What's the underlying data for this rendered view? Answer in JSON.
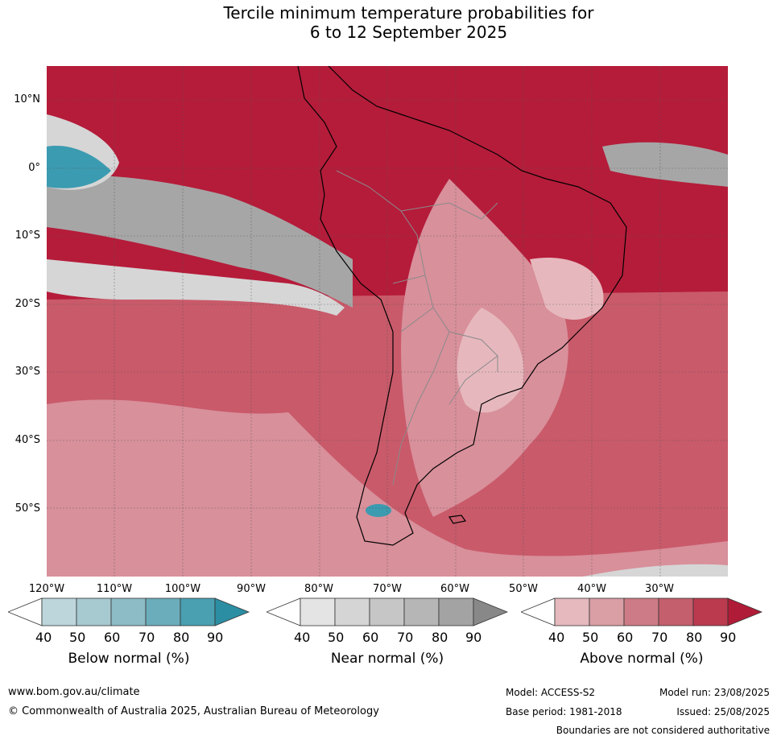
{
  "title": {
    "line1": "Tercile minimum temperature probabilities for",
    "line2": "6 to 12 September 2025"
  },
  "map": {
    "lat_labels": [
      "10°N",
      "0°",
      "10°S",
      "20°S",
      "30°S",
      "40°S",
      "50°S"
    ],
    "lon_labels": [
      "120°W",
      "110°W",
      "100°W",
      "90°W",
      "80°W",
      "70°W",
      "60°W",
      "50°W",
      "40°W",
      "30°W"
    ],
    "colors": {
      "above_strong": "#b51c3a",
      "above_mid": "#c95a6a",
      "above_light": "#d8909b",
      "above_faint": "#e6b8be",
      "near": "#a6a6a6",
      "near_light": "#d6d6d6",
      "below": "#3b9bb0",
      "land_line": "#000000",
      "border_line": "#8a8a8a"
    }
  },
  "colorbars": [
    {
      "title": "Below normal (%)",
      "ticks": [
        "40",
        "50",
        "60",
        "70",
        "80",
        "90"
      ],
      "colors": [
        "#ffffff",
        "#bcd6dc",
        "#a7c9d0",
        "#8dbcc6",
        "#6cadbb",
        "#4a9fb0",
        "#2c8ea3"
      ]
    },
    {
      "title": "Near normal (%)",
      "ticks": [
        "40",
        "50",
        "60",
        "70",
        "80",
        "90"
      ],
      "colors": [
        "#ffffff",
        "#e4e4e4",
        "#d5d5d5",
        "#c6c6c6",
        "#b6b6b6",
        "#a3a3a3",
        "#888888"
      ]
    },
    {
      "title": "Above normal (%)",
      "ticks": [
        "40",
        "50",
        "60",
        "70",
        "80",
        "90"
      ],
      "colors": [
        "#ffffff",
        "#e5b9be",
        "#da9ea5",
        "#cd7b86",
        "#c45f6d",
        "#bb3a4e",
        "#b01c37"
      ]
    }
  ],
  "footer": {
    "website": "www.bom.gov.au/climate",
    "copyright": "© Commonwealth of Australia 2025, Australian Bureau of Meteorology",
    "model": "Model: ACCESS-S2",
    "base_period": "Base period: 1981-2018",
    "model_run": "Model run: 23/08/2025",
    "issued": "Issued: 25/08/2025",
    "disclaimer": "Boundaries are not considered authoritative"
  }
}
